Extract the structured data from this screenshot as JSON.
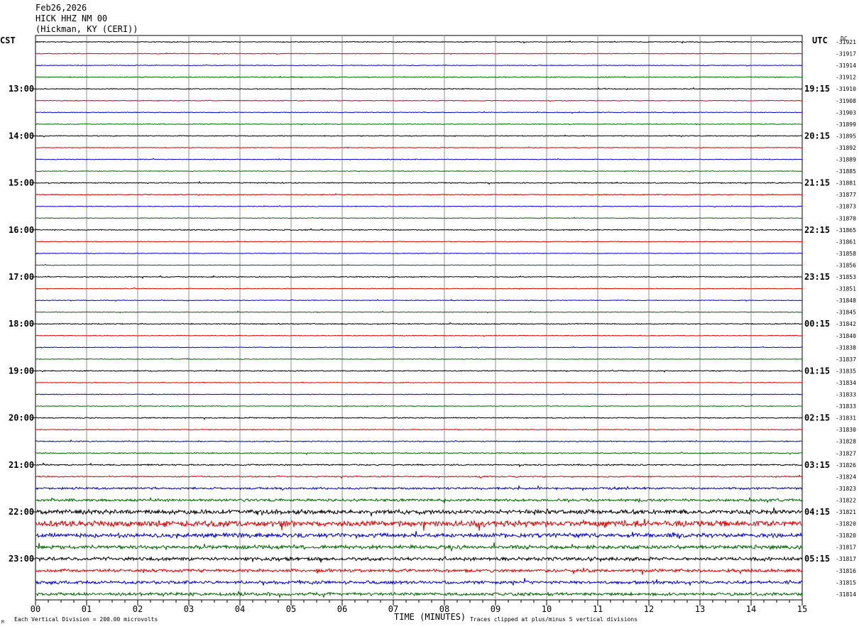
{
  "header": {
    "date": "Feb26,2026",
    "station": "HICK HHZ NM 00",
    "location": "(Hickman, KY (CERI))"
  },
  "left_tz": "CST",
  "right_tz": "UTC",
  "dc_label": "DC",
  "footer": {
    "vertical_division": "Each Vertical Division =  200.00 microvolts",
    "clip_note": "Traces clipped at plus/minus 5 vertical divisions",
    "corner_mark": "M"
  },
  "chart_data": {
    "type": "line",
    "xlabel": "TIME (MINUTES)",
    "xlim": [
      0,
      15
    ],
    "x_ticks": [
      "00",
      "01",
      "02",
      "03",
      "04",
      "05",
      "06",
      "07",
      "08",
      "09",
      "10",
      "11",
      "12",
      "13",
      "14",
      "15"
    ],
    "left_hour_labels": [
      "13:00",
      "14:00",
      "15:00",
      "16:00",
      "17:00",
      "18:00",
      "19:00",
      "20:00",
      "21:00",
      "22:00",
      "23:00"
    ],
    "right_hour_labels": [
      "19:15",
      "20:15",
      "21:15",
      "22:15",
      "23:15",
      "00:15",
      "01:15",
      "02:15",
      "03:15",
      "04:15",
      "05:15"
    ],
    "trace_colors": [
      "#000000",
      "#dd0000",
      "#0000cc",
      "#006600"
    ],
    "dc_offsets": [
      "-31921",
      "-31917",
      "-31914",
      "-31912",
      "-31910",
      "-31908",
      "-31903",
      "-31899",
      "-31895",
      "-31892",
      "-31889",
      "-31885",
      "-31881",
      "-31877",
      "-31873",
      "-31870",
      "-31865",
      "-31861",
      "-31858",
      "-31856",
      "-31853",
      "-31851",
      "-31848",
      "-31845",
      "-31842",
      "-31840",
      "-31838",
      "-31837",
      "-31835",
      "-31834",
      "-31833",
      "-31833",
      "-31831",
      "-31830",
      "-31828",
      "-31827",
      "-31826",
      "-31824",
      "-31823",
      "-31822",
      "-31821",
      "-31820",
      "-31820",
      "-31817",
      "-31817",
      "-31816",
      "-31815",
      "-31814"
    ],
    "trace_noise_levels": [
      0.5,
      0.4,
      0.4,
      0.5,
      0.5,
      0.4,
      0.4,
      0.4,
      0.5,
      0.4,
      0.4,
      0.4,
      0.6,
      0.5,
      0.4,
      0.4,
      0.6,
      0.4,
      0.4,
      0.4,
      0.6,
      0.4,
      0.4,
      0.4,
      0.6,
      0.4,
      0.4,
      0.4,
      0.6,
      0.4,
      0.4,
      0.4,
      0.6,
      0.5,
      0.6,
      0.6,
      0.8,
      0.7,
      1.2,
      1.5,
      2.5,
      3.5,
      2.5,
      2.2,
      2.0,
      1.8,
      1.8,
      1.8
    ]
  }
}
